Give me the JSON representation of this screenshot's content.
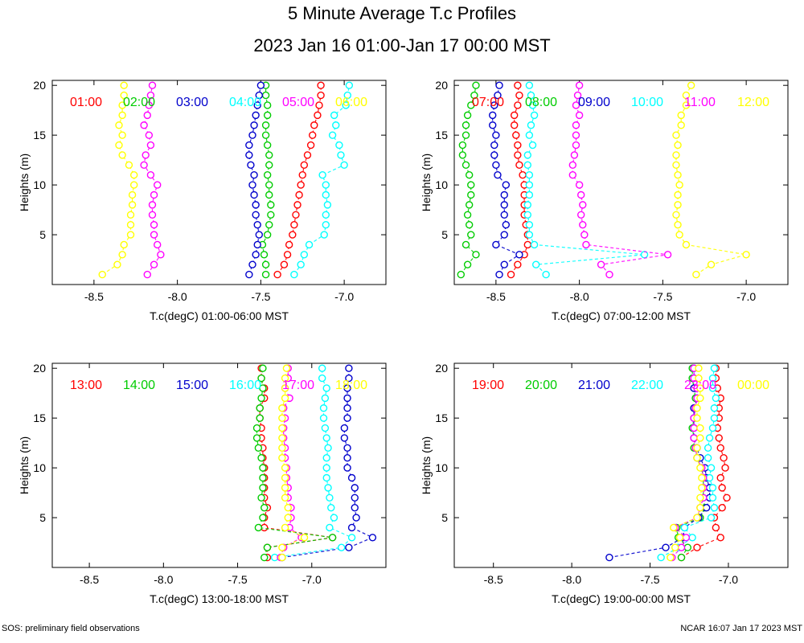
{
  "title": "5 Minute Average T.c Profiles",
  "subtitle": "2023 Jan 16 01:00-Jan 17 00:00 MST",
  "footer_left": "SOS: preliminary field observations",
  "footer_right": "NCAR 16:07 Jan 17 2023 MST",
  "colors": {
    "red": "#ff0000",
    "green": "#00cc00",
    "blue": "#0000cc",
    "cyan": "#00ffff",
    "magenta": "#ff00ff",
    "yellow": "#ffff00"
  },
  "heights": [
    1,
    2,
    3,
    4,
    5,
    6,
    7,
    8,
    9,
    10,
    11,
    12,
    13,
    14,
    15,
    16,
    17,
    18,
    19,
    20
  ],
  "chart_data": [
    {
      "type": "scatter",
      "xlabel": "T.c(degC) 01:00-06:00 MST",
      "ylabel": "Heights (m)",
      "xlim": [
        -8.75,
        -6.75
      ],
      "ylim": [
        0,
        20.5
      ],
      "xticks": [
        -8.5,
        -8.0,
        -7.5,
        -7.0
      ],
      "xtick_labels": [
        "-8.5",
        "-8.0",
        "-7.5",
        "-7.0"
      ],
      "yticks": [
        5,
        10,
        15,
        20
      ],
      "ytick_labels": [
        "5",
        "10",
        "15",
        "20"
      ],
      "series": [
        {
          "name": "01:00",
          "color": "red",
          "values": [
            -7.4,
            -7.36,
            -7.34,
            -7.33,
            -7.31,
            -7.3,
            -7.29,
            -7.28,
            -7.27,
            -7.26,
            -7.25,
            -7.24,
            -7.22,
            -7.2,
            -7.19,
            -7.18,
            -7.16,
            -7.15,
            -7.14,
            -7.14
          ]
        },
        {
          "name": "02:00",
          "color": "green",
          "values": [
            -7.47,
            -7.47,
            -7.48,
            -7.49,
            -7.46,
            -7.45,
            -7.44,
            -7.44,
            -7.45,
            -7.45,
            -7.46,
            -7.45,
            -7.45,
            -7.46,
            -7.47,
            -7.47,
            -7.46,
            -7.46,
            -7.47,
            -7.47
          ]
        },
        {
          "name": "03:00",
          "color": "blue",
          "values": [
            -7.57,
            -7.55,
            -7.53,
            -7.52,
            -7.51,
            -7.52,
            -7.53,
            -7.53,
            -7.54,
            -7.55,
            -7.54,
            -7.56,
            -7.57,
            -7.57,
            -7.55,
            -7.54,
            -7.53,
            -7.52,
            -7.51,
            -7.5
          ]
        },
        {
          "name": "04:00",
          "color": "cyan",
          "values": [
            -7.3,
            -7.26,
            -7.24,
            -7.21,
            -7.12,
            -7.11,
            -7.11,
            -7.1,
            -7.11,
            -7.11,
            -7.13,
            -7.0,
            -7.02,
            -7.03,
            -7.07,
            -7.05,
            -7.06,
            -6.99,
            -6.98,
            -6.97
          ]
        },
        {
          "name": "05:00",
          "color": "magenta",
          "values": [
            -8.18,
            -8.14,
            -8.1,
            -8.12,
            -8.14,
            -8.14,
            -8.15,
            -8.15,
            -8.14,
            -8.12,
            -8.16,
            -8.2,
            -8.19,
            -8.16,
            -8.17,
            -8.2,
            -8.18,
            -8.17,
            -8.16,
            -8.15
          ]
        },
        {
          "name": "06:00",
          "color": "yellow",
          "values": [
            -8.45,
            -8.36,
            -8.33,
            -8.32,
            -8.28,
            -8.28,
            -8.28,
            -8.27,
            -8.27,
            -8.26,
            -8.26,
            -8.29,
            -8.33,
            -8.35,
            -8.33,
            -8.35,
            -8.33,
            -8.33,
            -8.32,
            -8.32
          ]
        }
      ],
      "legend": [
        "01:00",
        "02:00",
        "03:00",
        "04:00",
        "05:00",
        "06:00"
      ]
    },
    {
      "type": "scatter",
      "xlabel": "T.c(degC) 07:00-12:00 MST",
      "ylabel": "Heights (m)",
      "xlim": [
        -8.75,
        -6.75
      ],
      "ylim": [
        0,
        20.5
      ],
      "xticks": [
        -8.5,
        -8.0,
        -7.5,
        -7.0
      ],
      "xtick_labels": [
        "-8.5",
        "-8.0",
        "-7.5",
        "-7.0"
      ],
      "yticks": [
        5,
        10,
        15,
        20
      ],
      "ytick_labels": [
        "5",
        "10",
        "15",
        "20"
      ],
      "series": [
        {
          "name": "07:00",
          "color": "red",
          "values": [
            -8.41,
            -8.37,
            -8.33,
            -8.31,
            -8.31,
            -8.32,
            -8.33,
            -8.33,
            -8.33,
            -8.33,
            -8.34,
            -8.36,
            -8.37,
            -8.37,
            -8.38,
            -8.39,
            -8.39,
            -8.37,
            -8.36,
            -8.37
          ]
        },
        {
          "name": "08:00",
          "color": "green",
          "values": [
            -8.71,
            -8.67,
            -8.62,
            -8.68,
            -8.65,
            -8.66,
            -8.67,
            -8.66,
            -8.65,
            -8.65,
            -8.66,
            -8.68,
            -8.7,
            -8.7,
            -8.68,
            -8.68,
            -8.67,
            -8.65,
            -8.63,
            -8.62
          ]
        },
        {
          "name": "09:00",
          "color": "blue",
          "values": [
            -8.48,
            -8.45,
            -8.36,
            -8.5,
            -8.45,
            -8.44,
            -8.45,
            -8.45,
            -8.45,
            -8.44,
            -8.49,
            -8.5,
            -8.51,
            -8.51,
            -8.5,
            -8.52,
            -8.52,
            -8.51,
            -8.49,
            -8.48
          ]
        },
        {
          "name": "10:00",
          "color": "cyan",
          "values": [
            -8.2,
            -8.26,
            -7.61,
            -8.27,
            -8.3,
            -8.3,
            -8.31,
            -8.31,
            -8.3,
            -8.3,
            -8.3,
            -8.31,
            -8.31,
            -8.28,
            -8.3,
            -8.29,
            -8.27,
            -8.28,
            -8.29,
            -8.3
          ]
        },
        {
          "name": "11:00",
          "color": "magenta",
          "values": [
            -7.82,
            -7.87,
            -7.47,
            -7.96,
            -7.97,
            -7.98,
            -7.99,
            -7.98,
            -7.99,
            -8.0,
            -8.04,
            -8.04,
            -8.03,
            -8.02,
            -8.02,
            -8.02,
            -8.0,
            -8.02,
            -8.01,
            -8.0
          ]
        },
        {
          "name": "12:00",
          "color": "yellow",
          "values": [
            -7.3,
            -7.21,
            -7.0,
            -7.36,
            -7.4,
            -7.41,
            -7.42,
            -7.41,
            -7.41,
            -7.4,
            -7.41,
            -7.42,
            -7.42,
            -7.41,
            -7.42,
            -7.39,
            -7.39,
            -7.36,
            -7.36,
            -7.33
          ]
        }
      ],
      "legend": [
        "07:00",
        "08:00",
        "09:00",
        "10:00",
        "11:00",
        "12:00"
      ]
    },
    {
      "type": "scatter",
      "xlabel": "T.c(degC) 13:00-18:00 MST",
      "ylabel": "Heights (m)",
      "xlim": [
        -8.75,
        -6.5
      ],
      "ylim": [
        0,
        20.5
      ],
      "xticks": [
        -8.5,
        -8.0,
        -7.5,
        -7.0
      ],
      "xtick_labels": [
        "-8.5",
        "-8.0",
        "-7.5",
        "-7.0"
      ],
      "yticks": [
        5,
        10,
        15,
        20
      ],
      "ytick_labels": [
        "5",
        "10",
        "15",
        "20"
      ],
      "series": [
        {
          "name": "13:00",
          "color": "red",
          "values": [
            -7.3,
            -7.3,
            -6.86,
            -7.32,
            -7.32,
            -7.3,
            -7.32,
            -7.32,
            -7.32,
            -7.32,
            -7.33,
            -7.33,
            -7.34,
            -7.34,
            -7.35,
            -7.35,
            -7.32,
            -7.32,
            -7.34,
            -7.34
          ]
        },
        {
          "name": "14:00",
          "color": "green",
          "values": [
            -7.32,
            -7.3,
            -6.86,
            -7.36,
            -7.33,
            -7.32,
            -7.34,
            -7.33,
            -7.33,
            -7.33,
            -7.34,
            -7.36,
            -7.37,
            -7.37,
            -7.35,
            -7.35,
            -7.34,
            -7.33,
            -7.34,
            -7.33
          ]
        },
        {
          "name": "15:00",
          "color": "blue",
          "values": [
            -7.2,
            -6.75,
            -6.59,
            -6.73,
            -6.7,
            -6.71,
            -6.71,
            -6.71,
            -6.73,
            -6.76,
            -6.76,
            -6.76,
            -6.78,
            -6.78,
            -6.76,
            -6.76,
            -6.76,
            -6.76,
            -6.75,
            -6.75
          ]
        },
        {
          "name": "16:00",
          "color": "cyan",
          "values": [
            -7.25,
            -6.8,
            -6.73,
            -6.88,
            -6.85,
            -6.87,
            -6.88,
            -6.89,
            -6.9,
            -6.9,
            -6.9,
            -6.89,
            -6.9,
            -6.91,
            -6.92,
            -6.92,
            -6.91,
            -6.9,
            -6.93,
            -6.93
          ]
        },
        {
          "name": "17:00",
          "color": "magenta",
          "values": [
            -7.21,
            -7.19,
            -7.07,
            -7.15,
            -7.14,
            -7.14,
            -7.16,
            -7.16,
            -7.17,
            -7.17,
            -7.18,
            -7.18,
            -7.19,
            -7.19,
            -7.18,
            -7.19,
            -7.15,
            -7.18,
            -7.16,
            -7.16
          ]
        },
        {
          "name": "18:00",
          "color": "yellow",
          "values": [
            -7.2,
            -7.2,
            -7.05,
            -7.18,
            -7.16,
            -7.16,
            -7.18,
            -7.18,
            -7.18,
            -7.18,
            -7.2,
            -7.2,
            -7.2,
            -7.2,
            -7.2,
            -7.2,
            -7.18,
            -7.18,
            -7.18,
            -7.17
          ]
        }
      ],
      "legend": [
        "13:00",
        "14:00",
        "15:00",
        "16:00",
        "17:00",
        "18:00"
      ]
    },
    {
      "type": "scatter",
      "xlabel": "T.c(degC) 19:00-00:00 MST",
      "ylabel": "Heights (m)",
      "xlim": [
        -8.75,
        -6.62
      ],
      "ylim": [
        0,
        20.5
      ],
      "xticks": [
        -8.5,
        -8.0,
        -7.5,
        -7.0
      ],
      "xtick_labels": [
        "-8.5",
        "-8.0",
        "-7.5",
        "-7.0"
      ],
      "yticks": [
        5,
        10,
        15,
        20
      ],
      "ytick_labels": [
        "5",
        "10",
        "15",
        "20"
      ],
      "series": [
        {
          "name": "19:00",
          "color": "red",
          "values": [
            -7.3,
            -7.2,
            -7.05,
            -7.08,
            -7.09,
            -7.04,
            -7.01,
            -7.04,
            -7.05,
            -7.02,
            -7.03,
            -7.05,
            -7.06,
            -7.07,
            -7.06,
            -7.06,
            -7.05,
            -7.07,
            -7.08,
            -7.08
          ]
        },
        {
          "name": "20:00",
          "color": "green",
          "values": [
            -7.3,
            -7.26,
            -7.32,
            -7.33,
            -7.18,
            -7.15,
            -7.16,
            -7.16,
            -7.16,
            -7.17,
            -7.2,
            -7.22,
            -7.22,
            -7.23,
            -7.22,
            -7.22,
            -7.21,
            -7.22,
            -7.23,
            -7.23
          ]
        },
        {
          "name": "21:00",
          "color": "blue",
          "values": [
            -7.76,
            -7.4,
            -7.29,
            -7.28,
            -7.19,
            -7.14,
            -7.12,
            -7.12,
            -7.14,
            -7.15,
            -7.18,
            -7.2,
            -7.22,
            -7.22,
            -7.22,
            -7.22,
            -7.2,
            -7.22,
            -7.22,
            -7.22
          ]
        },
        {
          "name": "22:00",
          "color": "cyan",
          "values": [
            -7.43,
            -7.32,
            -7.23,
            -7.28,
            -7.11,
            -7.09,
            -7.1,
            -7.1,
            -7.12,
            -7.11,
            -7.13,
            -7.13,
            -7.12,
            -7.1,
            -7.09,
            -7.09,
            -7.08,
            -7.1,
            -7.1,
            -7.09
          ]
        },
        {
          "name": "23:00",
          "color": "magenta",
          "values": [
            -7.36,
            -7.3,
            -7.27,
            -7.34,
            -7.2,
            -7.18,
            -7.16,
            -7.16,
            -7.16,
            -7.17,
            -7.2,
            -7.21,
            -7.22,
            -7.22,
            -7.22,
            -7.21,
            -7.2,
            -7.2,
            -7.22,
            -7.22
          ]
        },
        {
          "name": "00:00",
          "color": "yellow",
          "values": [
            -7.37,
            -7.34,
            -7.31,
            -7.35,
            -7.2,
            -7.18,
            -7.18,
            -7.17,
            -7.17,
            -7.18,
            -7.2,
            -7.2,
            -7.18,
            -7.18,
            -7.2,
            -7.2,
            -7.18,
            -7.18,
            -7.19,
            -7.19
          ]
        }
      ],
      "legend": [
        "19:00",
        "20:00",
        "21:00",
        "22:00",
        "23:00",
        "00:00"
      ]
    }
  ]
}
